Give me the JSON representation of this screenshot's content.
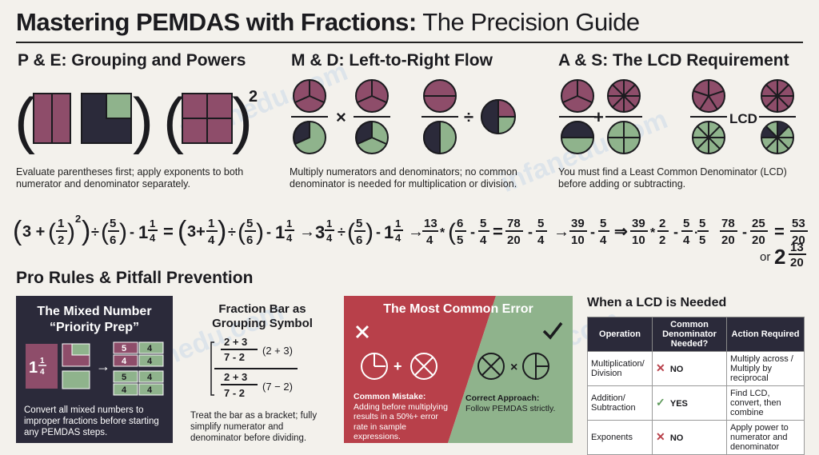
{
  "title": {
    "bold": "Mastering PEMDAS with Fractions:",
    "light": " The Precision Guide"
  },
  "watermark": "infanedu.com",
  "sections": [
    {
      "heading": "P & E: Grouping and Powers",
      "caption": "Evaluate parentheses first; apply exponents to both numerator and denominator separately.",
      "exponent": "2"
    },
    {
      "heading": "M & D: Left-to-Right Flow",
      "caption": "Multiply numerators and denominators; no common denominator is needed for multiplication or division.",
      "ops": [
        "×",
        "÷"
      ]
    },
    {
      "heading": "A & S: The LCD Requirement",
      "caption": "You must find a Least Common Denominator (LCD) before adding or subtracting.",
      "ops": [
        "+"
      ],
      "lcd_label": "LCD"
    }
  ],
  "equation": {
    "parts": [
      "(3 + (1/2)²) ÷ (5/6) - 1¼",
      "=",
      "(3+1/4) ÷ (5/6) - 1¼",
      "→",
      "3¼ ÷ (5/6) - 1¼",
      "→",
      "13/4 * (6/5 - 5/4)",
      "=",
      "78/20 - 5/4",
      "→",
      "39/10 - 5/4",
      "⇒",
      "39/10 * 2/2 - 5/4 * 5/5",
      "78/20 - 25/20",
      "=",
      "53/20"
    ],
    "or_label": "or",
    "mixed_whole": "2",
    "mixed_num": "13",
    "mixed_den": "20"
  },
  "pro": {
    "heading": "Pro Rules & Pitfall Prevention",
    "mixed": {
      "title": "The Mixed Number “Priority Prep”",
      "whole": "1",
      "num": "1",
      "den": "4",
      "grid": [
        "5",
        "4",
        "4",
        "4",
        "5",
        "4",
        "4",
        "4"
      ],
      "caption": "Convert all mixed numbers to improper fractions before starting any PEMDAS steps."
    },
    "bar": {
      "title": "Fraction Bar as Grouping Symbol",
      "num1": "2 + 3",
      "den1": "7 - 2",
      "rhs1": "(2 + 3)",
      "num2": "2 + 3",
      "den2": "7 - 2",
      "rhs2": "(7 − 2)",
      "caption": "Treat the bar as a bracket; fully simplify numerator and denominator before dividing."
    },
    "error": {
      "title": "The Most Common Error",
      "mistake_head": "Common Mistake:",
      "mistake_text": "Adding before multiplying results in a 50%+ error rate in sample expressions.",
      "correct_head": "Correct Approach:",
      "correct_text": "Follow PEMDAS strictly.",
      "plus": "+",
      "times": "×"
    }
  },
  "lcd_table": {
    "heading": "When a LCD is Needed",
    "headers": [
      "Operation",
      "Common Denominator Needed?",
      "Action Required"
    ],
    "rows": [
      {
        "op": "Multiplication/ Division",
        "needed": "NO",
        "mark": "✕",
        "action": "Multiply across / Multiply by reciprocal"
      },
      {
        "op": "Addition/ Subtraction",
        "needed": "YES",
        "mark": "✓",
        "action": "Find LCD, convert, then combine"
      },
      {
        "op": "Exponents",
        "needed": "NO",
        "mark": "✕",
        "action": "Apply power to numerator and denominator"
      }
    ]
  },
  "colors": {
    "plum": "#8e4d6a",
    "green": "#8fb38c",
    "navy": "#2b2a3a",
    "red": "#b8404a",
    "bg": "#f3f1ec"
  }
}
